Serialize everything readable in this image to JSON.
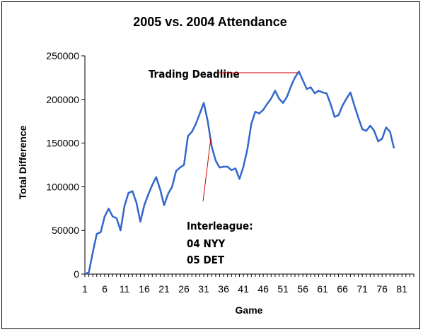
{
  "chart_data": {
    "type": "line",
    "title": "2005 vs. 2004 Attendance",
    "xlabel": "Game",
    "ylabel": "Total Difference",
    "xlim": [
      1,
      84
    ],
    "ylim": [
      0,
      250000
    ],
    "x_ticks": [
      1,
      6,
      11,
      16,
      21,
      26,
      31,
      36,
      41,
      46,
      51,
      56,
      61,
      66,
      71,
      76,
      81
    ],
    "y_ticks": [
      0,
      50000,
      100000,
      150000,
      200000,
      250000
    ],
    "grid": false,
    "legend": "none",
    "series_color": "#3366CC",
    "annotation_color": "#CC0000",
    "series": [
      {
        "name": "",
        "x": [
          1,
          2,
          3,
          4,
          5,
          6,
          7,
          8,
          9,
          10,
          11,
          12,
          13,
          14,
          15,
          16,
          17,
          18,
          19,
          20,
          21,
          22,
          23,
          24,
          25,
          26,
          27,
          28,
          29,
          30,
          31,
          32,
          33,
          34,
          35,
          36,
          37,
          38,
          39,
          40,
          41,
          42,
          43,
          44,
          45,
          46,
          47,
          48,
          49,
          50,
          51,
          52,
          53,
          54,
          55,
          56,
          57,
          58,
          59,
          60,
          61,
          62,
          63,
          64,
          65,
          66,
          67,
          68,
          69,
          70,
          71,
          72,
          73,
          74,
          75,
          76,
          77,
          78,
          79
        ],
        "values": [
          0,
          2000,
          25000,
          46000,
          48000,
          66000,
          75000,
          66000,
          64000,
          50000,
          78000,
          93000,
          95000,
          82000,
          60000,
          79000,
          91000,
          102000,
          111000,
          97000,
          79000,
          92000,
          100000,
          118000,
          122000,
          125000,
          158000,
          163000,
          172000,
          184000,
          196000,
          175000,
          146000,
          130000,
          122000,
          123000,
          123000,
          119000,
          121000,
          109000,
          123000,
          143000,
          172000,
          186000,
          184000,
          188000,
          195000,
          201000,
          210000,
          201000,
          196000,
          203000,
          215000,
          225000,
          232000,
          222000,
          212000,
          214000,
          207000,
          210000,
          208000,
          207000,
          195000,
          180000,
          182000,
          193000,
          201000,
          208000,
          193000,
          179000,
          166000,
          164000,
          170000,
          164000,
          152000,
          155000,
          168000,
          163000,
          144000
        ]
      }
    ],
    "annotations": [
      {
        "text": "Trading Deadline",
        "x": 55,
        "y": 232000
      },
      {
        "text": "Interleague:",
        "x": 31,
        "y": 196000
      },
      {
        "text": "04 NYY",
        "x": 31,
        "y": 196000
      },
      {
        "text": "05 DET",
        "x": 31,
        "y": 196000
      }
    ]
  }
}
